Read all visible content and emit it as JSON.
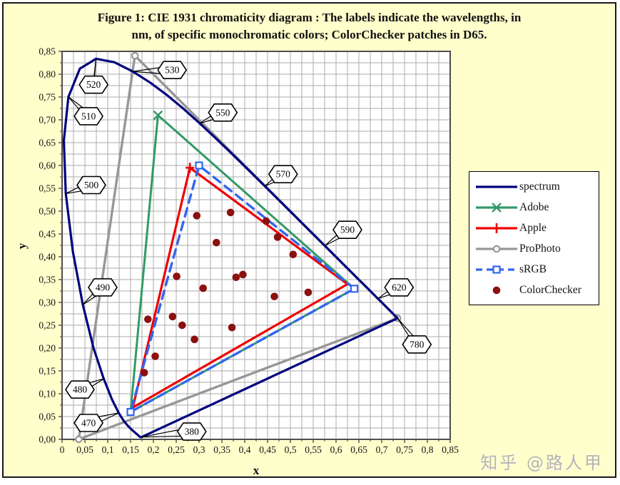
{
  "title": {
    "line1": "Figure 1: CIE 1931 chromaticity diagram : The labels indicate the wavelengths, in",
    "line2": "nm, of specific monochromatic colors; ColorChecker patches in D65."
  },
  "axes": {
    "x_title": "x",
    "y_title": "y",
    "x_tick_labels": [
      "0",
      "0,05",
      "0,1",
      "0,15",
      "0,2",
      "0,25",
      "0,3",
      "0,35",
      "0,4",
      "0,45",
      "0,5",
      "0,55",
      "0,6",
      "0,65",
      "0,7",
      "0,75",
      "0,8",
      "0,85"
    ],
    "y_tick_labels": [
      "0,00",
      "0,05",
      "0,10",
      "0,15",
      "0,20",
      "0,25",
      "0,30",
      "0,35",
      "0,40",
      "0,45",
      "0,50",
      "0,55",
      "0,60",
      "0,65",
      "0,70",
      "0,75",
      "0,80",
      "0,85"
    ],
    "x_range": [
      0,
      0.85
    ],
    "y_range": [
      0,
      0.85
    ],
    "tick_step": 0.05,
    "grid_step": 0.025,
    "grid_color": "#ABABAB",
    "frame_color": "#4F4F4F",
    "plot_bg": "#FFFFFF"
  },
  "legend": {
    "items": [
      {
        "label": "spectrum"
      },
      {
        "label": "Adobe"
      },
      {
        "label": "Apple"
      },
      {
        "label": "ProPhoto"
      },
      {
        "label": "sRGB"
      },
      {
        "label": "ColorChecker"
      }
    ]
  },
  "watermark": "知乎 @路人甲",
  "page_bg": "#FFFFCC",
  "chart_data": {
    "type": "line",
    "title": "CIE 1931 chromaticity diagram",
    "xlabel": "x",
    "ylabel": "y",
    "xlim": [
      0,
      0.85
    ],
    "ylim": [
      0,
      0.85
    ],
    "grid": true,
    "legend_position": "right",
    "series": [
      {
        "name": "spectrum",
        "color": "#00007E",
        "width": 3.2,
        "style": "solid",
        "marker": "none",
        "closed": true,
        "points": [
          [
            0.1741,
            0.005
          ],
          [
            0.174,
            0.005
          ],
          [
            0.1738,
            0.0049
          ],
          [
            0.1736,
            0.0049
          ],
          [
            0.1733,
            0.0048
          ],
          [
            0.173,
            0.0048
          ],
          [
            0.1726,
            0.0048
          ],
          [
            0.1721,
            0.0048
          ],
          [
            0.1714,
            0.0051
          ],
          [
            0.1703,
            0.0058
          ],
          [
            0.1689,
            0.0069
          ],
          [
            0.1669,
            0.0086
          ],
          [
            0.1644,
            0.0109
          ],
          [
            0.1611,
            0.0138
          ],
          [
            0.1566,
            0.0177
          ],
          [
            0.151,
            0.0227
          ],
          [
            0.144,
            0.0297
          ],
          [
            0.1355,
            0.0399
          ],
          [
            0.1241,
            0.0578
          ],
          [
            0.1096,
            0.0868
          ],
          [
            0.0913,
            0.1327
          ],
          [
            0.0687,
            0.2007
          ],
          [
            0.0454,
            0.295
          ],
          [
            0.0235,
            0.4127
          ],
          [
            0.0082,
            0.5384
          ],
          [
            0.0039,
            0.6548
          ],
          [
            0.0139,
            0.7502
          ],
          [
            0.0389,
            0.812
          ],
          [
            0.0743,
            0.8338
          ],
          [
            0.1142,
            0.8262
          ],
          [
            0.1547,
            0.8059
          ],
          [
            0.1929,
            0.7816
          ],
          [
            0.2296,
            0.7543
          ],
          [
            0.2658,
            0.7243
          ],
          [
            0.3016,
            0.6923
          ],
          [
            0.3373,
            0.6589
          ],
          [
            0.3731,
            0.6245
          ],
          [
            0.4087,
            0.5896
          ],
          [
            0.4441,
            0.5547
          ],
          [
            0.4788,
            0.5202
          ],
          [
            0.5125,
            0.4866
          ],
          [
            0.5448,
            0.4544
          ],
          [
            0.5752,
            0.4242
          ],
          [
            0.6029,
            0.3965
          ],
          [
            0.627,
            0.3725
          ],
          [
            0.6482,
            0.3514
          ],
          [
            0.6658,
            0.334
          ],
          [
            0.6801,
            0.3197
          ],
          [
            0.6915,
            0.3083
          ],
          [
            0.7006,
            0.2993
          ],
          [
            0.7079,
            0.292
          ],
          [
            0.714,
            0.2859
          ],
          [
            0.719,
            0.2809
          ],
          [
            0.723,
            0.277
          ],
          [
            0.726,
            0.274
          ],
          [
            0.7283,
            0.2717
          ],
          [
            0.73,
            0.27
          ],
          [
            0.732,
            0.268
          ],
          [
            0.7334,
            0.2666
          ],
          [
            0.7347,
            0.2653
          ]
        ]
      },
      {
        "name": "Adobe",
        "color": "#339966",
        "width": 3.0,
        "style": "solid",
        "marker": "x",
        "closed": true,
        "points": [
          [
            0.64,
            0.33
          ],
          [
            0.21,
            0.71
          ],
          [
            0.15,
            0.06
          ]
        ],
        "marker_points": [
          [
            0.21,
            0.71
          ]
        ]
      },
      {
        "name": "Apple",
        "color": "#EE0000",
        "width": 3.2,
        "style": "solid",
        "marker": "plus",
        "closed": true,
        "points": [
          [
            0.625,
            0.34
          ],
          [
            0.28,
            0.595
          ],
          [
            0.155,
            0.07
          ]
        ],
        "marker_points": [
          [
            0.28,
            0.595
          ]
        ]
      },
      {
        "name": "ProPhoto",
        "color": "#979797",
        "width": 3.4,
        "style": "solid",
        "marker": "circle",
        "closed": true,
        "points": [
          [
            0.7347,
            0.2653
          ],
          [
            0.1596,
            0.8404
          ],
          [
            0.0366,
            0.0001
          ]
        ],
        "marker_points": [
          [
            0.7347,
            0.2653
          ],
          [
            0.1596,
            0.8404
          ],
          [
            0.0366,
            0.0001
          ]
        ]
      },
      {
        "name": "sRGB",
        "color": "#3366EE",
        "width": 3.4,
        "style": "dashed",
        "dash": "12 8",
        "marker": "square",
        "closed": true,
        "points": [
          [
            0.64,
            0.33
          ],
          [
            0.3,
            0.6
          ],
          [
            0.15,
            0.06
          ]
        ],
        "marker_points": [
          [
            0.64,
            0.33
          ],
          [
            0.3,
            0.6
          ],
          [
            0.15,
            0.06
          ]
        ]
      },
      {
        "name": "ColorChecker",
        "color": "#8B1010",
        "style": "scatter",
        "marker": "dot",
        "dot_radius": 5.3,
        "points": [
          [
            0.295,
            0.49
          ],
          [
            0.369,
            0.497
          ],
          [
            0.447,
            0.478
          ],
          [
            0.338,
            0.431
          ],
          [
            0.472,
            0.443
          ],
          [
            0.506,
            0.405
          ],
          [
            0.251,
            0.357
          ],
          [
            0.381,
            0.355
          ],
          [
            0.396,
            0.361
          ],
          [
            0.309,
            0.331
          ],
          [
            0.465,
            0.313
          ],
          [
            0.539,
            0.322
          ],
          [
            0.188,
            0.263
          ],
          [
            0.242,
            0.269
          ],
          [
            0.263,
            0.25
          ],
          [
            0.372,
            0.245
          ],
          [
            0.29,
            0.219
          ],
          [
            0.204,
            0.182
          ],
          [
            0.18,
            0.146
          ]
        ]
      }
    ],
    "wavelength_labels": [
      {
        "text": "380",
        "label_xy": [
          0.284,
          0.017
        ],
        "anchor_xy": [
          0.1741,
          0.005
        ]
      },
      {
        "text": "470",
        "label_xy": [
          0.058,
          0.036
        ],
        "anchor_xy": [
          0.1241,
          0.0578
        ]
      },
      {
        "text": "480",
        "label_xy": [
          0.039,
          0.109
        ],
        "anchor_xy": [
          0.0913,
          0.1327
        ]
      },
      {
        "text": "490",
        "label_xy": [
          0.089,
          0.333
        ],
        "anchor_xy": [
          0.0454,
          0.295
        ]
      },
      {
        "text": "500",
        "label_xy": [
          0.064,
          0.557
        ],
        "anchor_xy": [
          0.0082,
          0.5384
        ]
      },
      {
        "text": "510",
        "label_xy": [
          0.058,
          0.708
        ],
        "anchor_xy": [
          0.0139,
          0.7502
        ]
      },
      {
        "text": "520",
        "label_xy": [
          0.069,
          0.777
        ],
        "anchor_xy": [
          0.0743,
          0.8338
        ]
      },
      {
        "text": "530",
        "label_xy": [
          0.241,
          0.809
        ],
        "anchor_xy": [
          0.1547,
          0.8059
        ]
      },
      {
        "text": "550",
        "label_xy": [
          0.352,
          0.716
        ],
        "anchor_xy": [
          0.3016,
          0.6923
        ]
      },
      {
        "text": "570",
        "label_xy": [
          0.484,
          0.581
        ],
        "anchor_xy": [
          0.4441,
          0.5547
        ]
      },
      {
        "text": "590",
        "label_xy": [
          0.625,
          0.459
        ],
        "anchor_xy": [
          0.5752,
          0.4242
        ]
      },
      {
        "text": "620",
        "label_xy": [
          0.738,
          0.333
        ],
        "anchor_xy": [
          0.6915,
          0.3083
        ]
      },
      {
        "text": "780",
        "label_xy": [
          0.777,
          0.208
        ],
        "anchor_xy": [
          0.7347,
          0.2653
        ]
      }
    ]
  }
}
